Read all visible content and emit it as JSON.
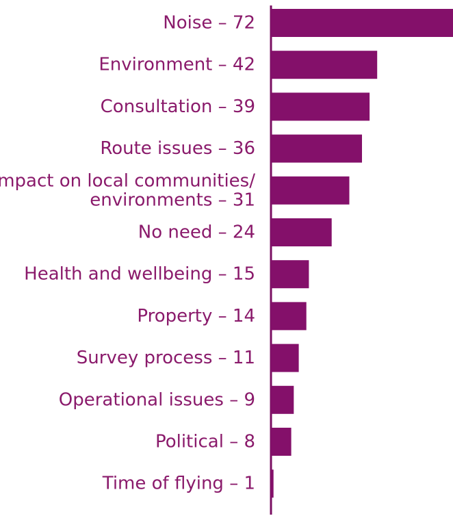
{
  "chart_data": {
    "type": "bar",
    "orientation": "horizontal",
    "categories": [
      [
        "Noise – 72"
      ],
      [
        "Environment – 42"
      ],
      [
        "Consultation – 39"
      ],
      [
        "Route issues – 36"
      ],
      [
        "Impact on local communities/",
        "environments – 31"
      ],
      [
        "No need – 24"
      ],
      [
        "Health and wellbeing – 15"
      ],
      [
        "Property – 14"
      ],
      [
        "Survey process – 11"
      ],
      [
        "Operational issues – 9"
      ],
      [
        "Political – 8"
      ],
      [
        "Time of flying – 1"
      ]
    ],
    "values": [
      72,
      42,
      39,
      36,
      31,
      24,
      15,
      14,
      11,
      9,
      8,
      1
    ],
    "xlim": [
      0,
      72
    ],
    "title": "",
    "xlabel": "",
    "ylabel": "",
    "grid": false,
    "legend": "none",
    "colors": {
      "bar": "#84106a",
      "axis": "#7a0e62",
      "label": "#8a1a6b"
    }
  }
}
